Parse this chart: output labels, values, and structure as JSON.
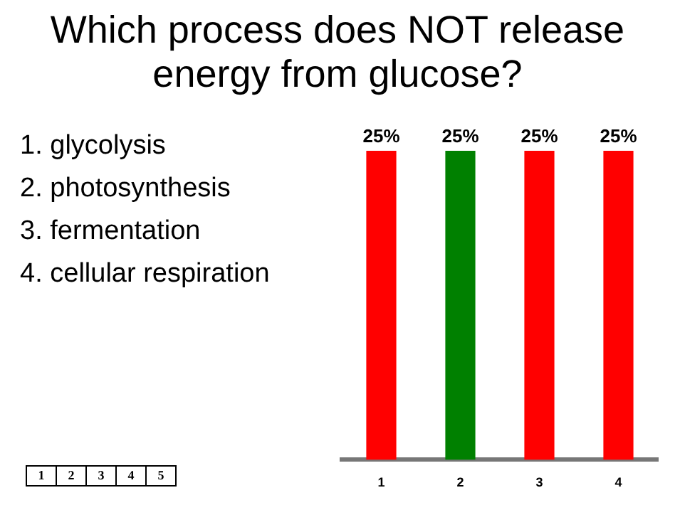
{
  "chart_data": {
    "type": "bar",
    "title": "Which process does NOT release energy from glucose?",
    "categories": [
      "1",
      "2",
      "3",
      "4"
    ],
    "values": [
      25,
      25,
      25,
      25
    ],
    "colors": [
      "#ff0000",
      "#008000",
      "#ff0000",
      "#ff0000"
    ],
    "value_labels": [
      "25%",
      "25%",
      "25%",
      "25%"
    ],
    "annotations": [
      "1.  glycolysis",
      "2.  photosynthesis",
      "3.  fermentation",
      "4.  cellular respiration",
      "1",
      "2",
      "3",
      "4",
      "5"
    ],
    "grid": false,
    "legend": false
  }
}
